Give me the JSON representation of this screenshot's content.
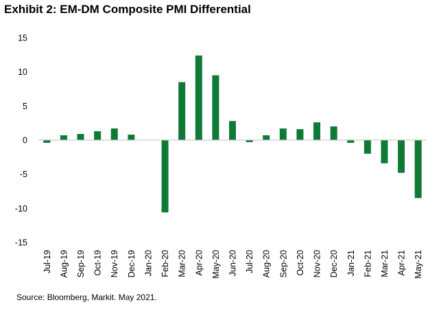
{
  "chart_data": {
    "type": "bar",
    "title": "Exhibit 2: EM-DM Composite PMI Differential",
    "xlabel": "",
    "ylabel": "",
    "ylim": [
      -15,
      15
    ],
    "yticks": [
      15,
      10,
      5,
      0,
      -5,
      -10,
      -15
    ],
    "grid": false,
    "legend": "none",
    "bar_color": "#0f7a35",
    "categories": [
      "Jul-19",
      "Aug-19",
      "Sep-19",
      "Oct-19",
      "Nov-19",
      "Dec-19",
      "Jan-20",
      "Feb-20",
      "Mar-20",
      "Apr-20",
      "May-20",
      "Jun-20",
      "Jul-20",
      "Aug-20",
      "Sep-20",
      "Oct-20",
      "Nov-20",
      "Dec-20",
      "Jan-21",
      "Feb-21",
      "Mar-21",
      "Apr-21",
      "May-21"
    ],
    "values": [
      -0.4,
      0.7,
      0.9,
      1.3,
      1.7,
      0.8,
      0.0,
      -10.6,
      8.5,
      12.4,
      9.5,
      2.8,
      -0.3,
      0.7,
      1.7,
      1.6,
      2.6,
      2.0,
      -0.4,
      -2.0,
      -3.4,
      -4.8,
      -8.5
    ],
    "source": "Source: Bloomberg, Markit. May 2021."
  }
}
